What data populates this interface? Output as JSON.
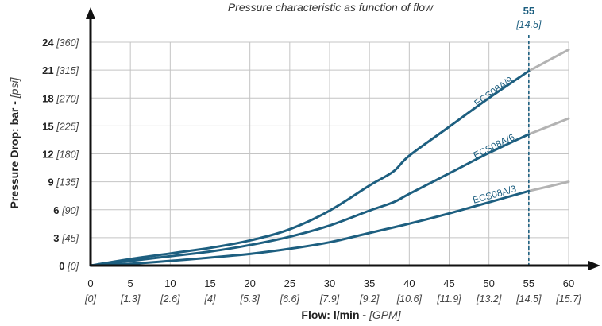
{
  "chart_data": {
    "type": "line",
    "title": "Pressure characteristic as function of flow",
    "xlabel": "Flow: l/min - ",
    "xlabel_sub": "[GPM]",
    "ylabel": "Pressure Drop: bar - ",
    "ylabel_sub": "[psi]",
    "xlim": [
      0,
      60
    ],
    "ylim": [
      0,
      24
    ],
    "x_ticks": [
      {
        "value": 0,
        "label": "0",
        "sub": "[0]"
      },
      {
        "value": 5,
        "label": "5",
        "sub": "[1.3]"
      },
      {
        "value": 10,
        "label": "10",
        "sub": "[2.6]"
      },
      {
        "value": 15,
        "label": "15",
        "sub": "[4]"
      },
      {
        "value": 20,
        "label": "20",
        "sub": "[5.3]"
      },
      {
        "value": 25,
        "label": "25",
        "sub": "[6.6]"
      },
      {
        "value": 30,
        "label": "30",
        "sub": "[7.9]"
      },
      {
        "value": 35,
        "label": "35",
        "sub": "[9.2]"
      },
      {
        "value": 40,
        "label": "40",
        "sub": "[10.6]"
      },
      {
        "value": 45,
        "label": "45",
        "sub": "[11.9]"
      },
      {
        "value": 50,
        "label": "50",
        "sub": "[13.2]"
      },
      {
        "value": 55,
        "label": "55",
        "sub": "[14.5]"
      },
      {
        "value": 60,
        "label": "60",
        "sub": "[15.7]"
      }
    ],
    "y_ticks": [
      {
        "value": 0,
        "label": "0",
        "sub": "[0]"
      },
      {
        "value": 3,
        "label": "3",
        "sub": "[45]"
      },
      {
        "value": 6,
        "label": "6",
        "sub": "[90]"
      },
      {
        "value": 9,
        "label": "9",
        "sub": "[135]"
      },
      {
        "value": 12,
        "label": "12",
        "sub": "[180]"
      },
      {
        "value": 15,
        "label": "15",
        "sub": "[225]"
      },
      {
        "value": 18,
        "label": "18",
        "sub": "[270]"
      },
      {
        "value": 21,
        "label": "21",
        "sub": "[315]"
      },
      {
        "value": 24,
        "label": "24",
        "sub": "[360]"
      }
    ],
    "grid": true,
    "marker_line": {
      "x": 55,
      "label": "55",
      "sub": "[14.5]",
      "style": "dashed"
    },
    "series": [
      {
        "name": "ECS08A/3",
        "color": "#1d5f80",
        "x": [
          0,
          5,
          10,
          15,
          20,
          25,
          30,
          35,
          40,
          45,
          50,
          55
        ],
        "y": [
          0,
          0.2,
          0.5,
          0.85,
          1.25,
          1.8,
          2.5,
          3.5,
          4.5,
          5.6,
          6.8,
          8.0
        ],
        "extension": {
          "color": "#b3b3b3",
          "x": [
            55,
            60
          ],
          "y": [
            8.0,
            9.0
          ]
        }
      },
      {
        "name": "ECS08A/6",
        "color": "#1d5f80",
        "x": [
          0,
          5,
          10,
          15,
          20,
          25,
          30,
          35,
          38,
          40,
          45,
          50,
          55
        ],
        "y": [
          0,
          0.5,
          1.0,
          1.5,
          2.2,
          3.1,
          4.3,
          5.9,
          6.8,
          7.7,
          9.9,
          12.1,
          14.1
        ],
        "extension": {
          "color": "#b3b3b3",
          "x": [
            55,
            60
          ],
          "y": [
            14.1,
            15.8
          ]
        }
      },
      {
        "name": "ECS08A/9",
        "color": "#1d5f80",
        "x": [
          0,
          5,
          10,
          15,
          20,
          25,
          30,
          35,
          38,
          40,
          45,
          50,
          55
        ],
        "y": [
          0,
          0.7,
          1.3,
          1.9,
          2.7,
          3.9,
          5.9,
          8.6,
          10.1,
          11.8,
          14.9,
          18.0,
          20.9
        ],
        "extension": {
          "color": "#b3b3b3",
          "x": [
            55,
            60
          ],
          "y": [
            20.9,
            23.2
          ]
        }
      }
    ]
  }
}
